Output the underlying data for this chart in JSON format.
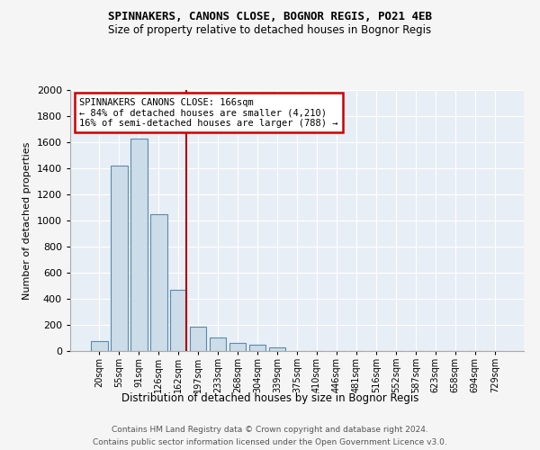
{
  "title1": "SPINNAKERS, CANONS CLOSE, BOGNOR REGIS, PO21 4EB",
  "title2": "Size of property relative to detached houses in Bognor Regis",
  "xlabel": "Distribution of detached houses by size in Bognor Regis",
  "ylabel": "Number of detached properties",
  "categories": [
    "20sqm",
    "55sqm",
    "91sqm",
    "126sqm",
    "162sqm",
    "197sqm",
    "233sqm",
    "268sqm",
    "304sqm",
    "339sqm",
    "375sqm",
    "410sqm",
    "446sqm",
    "481sqm",
    "516sqm",
    "552sqm",
    "587sqm",
    "623sqm",
    "658sqm",
    "694sqm",
    "729sqm"
  ],
  "values": [
    75,
    1420,
    1630,
    1050,
    470,
    185,
    105,
    65,
    45,
    30,
    0,
    0,
    0,
    0,
    0,
    0,
    0,
    0,
    0,
    0,
    0
  ],
  "bar_color": "#ccdce8",
  "bar_edge_color": "#5a8ab0",
  "vline_color": "#aa0000",
  "annotation_text": "SPINNAKERS CANONS CLOSE: 166sqm\n← 84% of detached houses are smaller (4,210)\n16% of semi-detached houses are larger (788) →",
  "annotation_box_edgecolor": "#cc0000",
  "plot_bg": "#e8eef5",
  "grid_color": "#ffffff",
  "footer1": "Contains HM Land Registry data © Crown copyright and database right 2024.",
  "footer2": "Contains public sector information licensed under the Open Government Licence v3.0.",
  "ylim": [
    0,
    2000
  ],
  "yticks": [
    0,
    200,
    400,
    600,
    800,
    1000,
    1200,
    1400,
    1600,
    1800,
    2000
  ],
  "vline_pos": 4.42
}
